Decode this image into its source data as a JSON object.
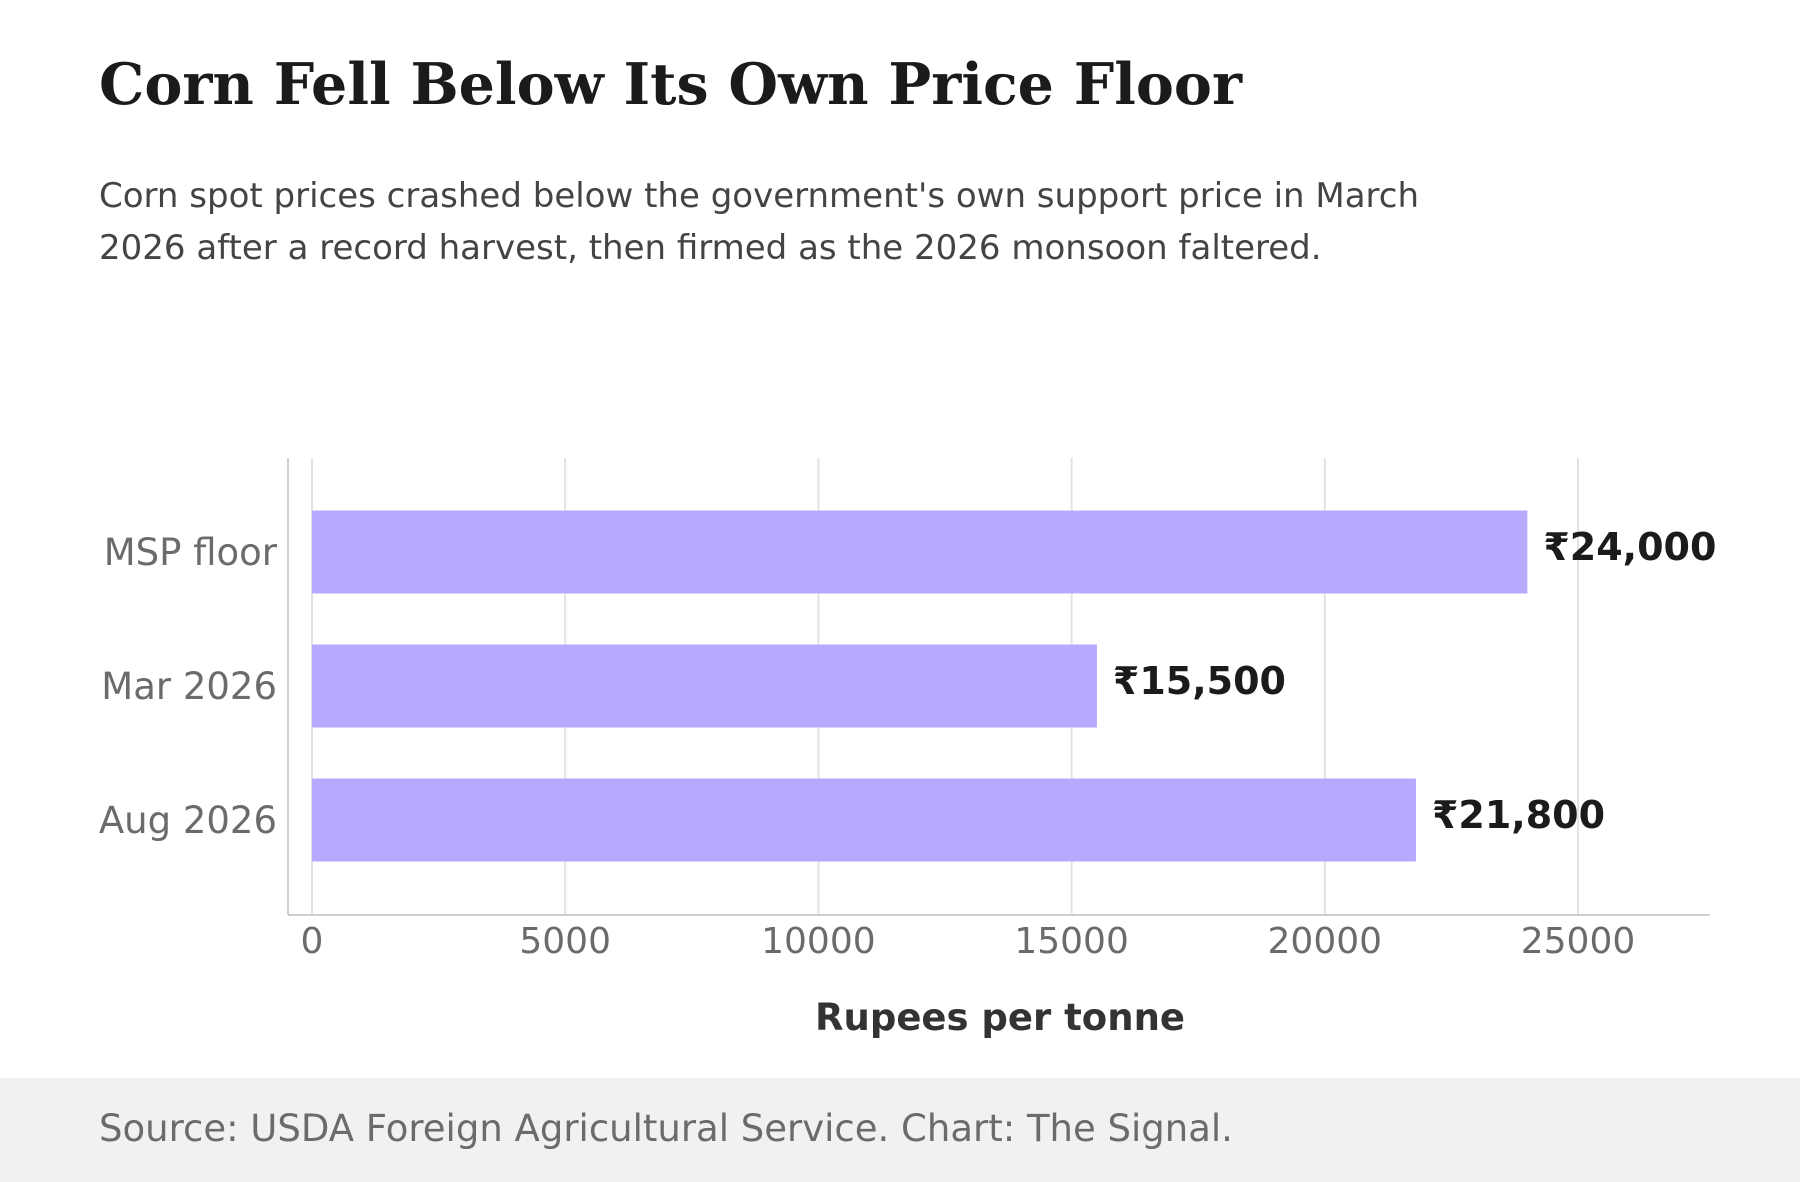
{
  "header": {
    "title": "Corn Fell Below Its Own Price Floor",
    "subtitle": "Corn spot prices crashed below the government's own support price in March 2026 after a record harvest, then firmed as the 2026 monsoon faltered."
  },
  "chart_data": {
    "type": "bar",
    "orientation": "horizontal",
    "categories": [
      "MSP floor",
      "Mar 2026",
      "Aug 2026"
    ],
    "values": [
      24000,
      15500,
      21800
    ],
    "value_labels": [
      "₹24,000",
      "₹15,500",
      "₹21,800"
    ],
    "xlabel": "Rupees per tonne",
    "ylabel": "",
    "xlim": [
      0,
      27500
    ],
    "x_ticks": [
      0,
      5000,
      10000,
      15000,
      20000,
      25000
    ],
    "grid": "vertical",
    "bar_color": "#b7a9fd"
  },
  "footer": {
    "source": "Source: USDA Foreign Agricultural Service. Chart: The Signal."
  }
}
